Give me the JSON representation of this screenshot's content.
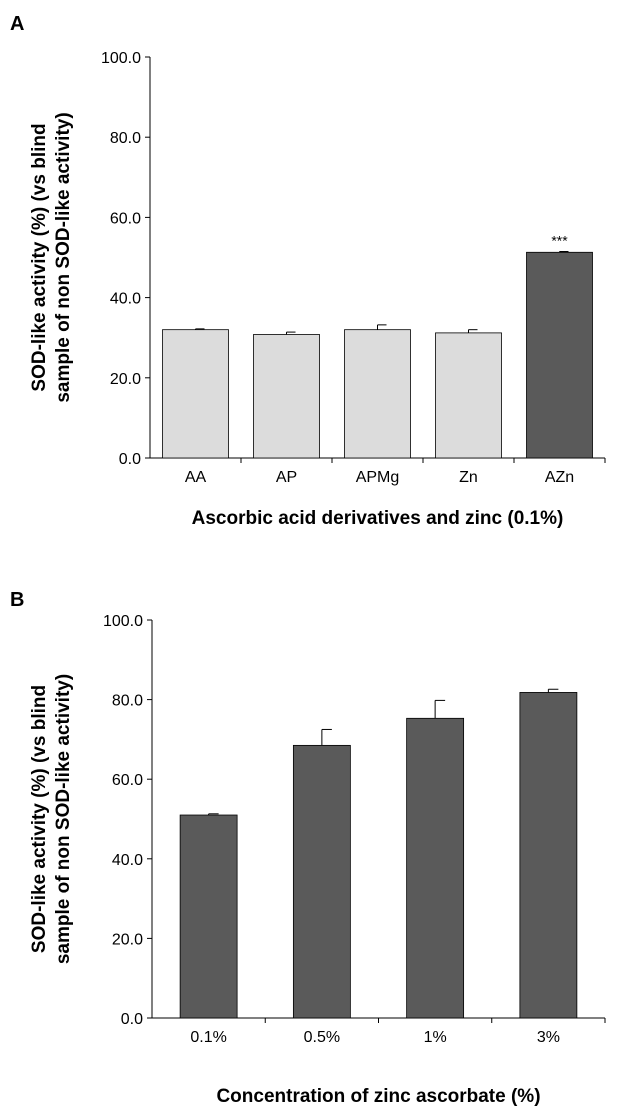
{
  "chart_data": [
    {
      "type": "bar",
      "panel": "A",
      "categories": [
        "AA",
        "AP",
        "APMg",
        "Zn",
        "AZn"
      ],
      "values": [
        32.0,
        30.8,
        32.0,
        31.2,
        51.3
      ],
      "errors": [
        0.2,
        0.6,
        1.2,
        0.8,
        0.2
      ],
      "bar_colors": [
        "#dcdcdc",
        "#dcdcdc",
        "#dcdcdc",
        "#dcdcdc",
        "#5a5a5a"
      ],
      "annotations": [
        "",
        "",
        "",
        "",
        "***"
      ],
      "ylabel": [
        "SOD-like activity (%) (vs blind",
        "sample of non SOD-like activity)"
      ],
      "xlabel": "Ascorbic acid derivatives and zinc (0.1%)",
      "ylim": [
        0,
        100
      ],
      "yticks": [
        "0.0",
        "20.0",
        "40.0",
        "60.0",
        "80.0",
        "100.0"
      ],
      "grid": false
    },
    {
      "type": "bar",
      "panel": "B",
      "categories": [
        "0.1%",
        "0.5%",
        "1%",
        "3%"
      ],
      "values": [
        51.0,
        68.5,
        75.3,
        81.8
      ],
      "errors": [
        0.3,
        4.0,
        4.5,
        0.8
      ],
      "bar_colors": [
        "#5a5a5a",
        "#5a5a5a",
        "#5a5a5a",
        "#5a5a5a"
      ],
      "annotations": [
        "",
        "",
        "",
        ""
      ],
      "ylabel": [
        "SOD-like activity (%) (vs blind",
        "sample of non SOD-like activity)"
      ],
      "xlabel": "Concentration of zinc ascorbate (%)",
      "ylim": [
        0,
        100
      ],
      "yticks": [
        "0.0",
        "20.0",
        "40.0",
        "60.0",
        "80.0",
        "100.0"
      ],
      "grid": false
    }
  ]
}
